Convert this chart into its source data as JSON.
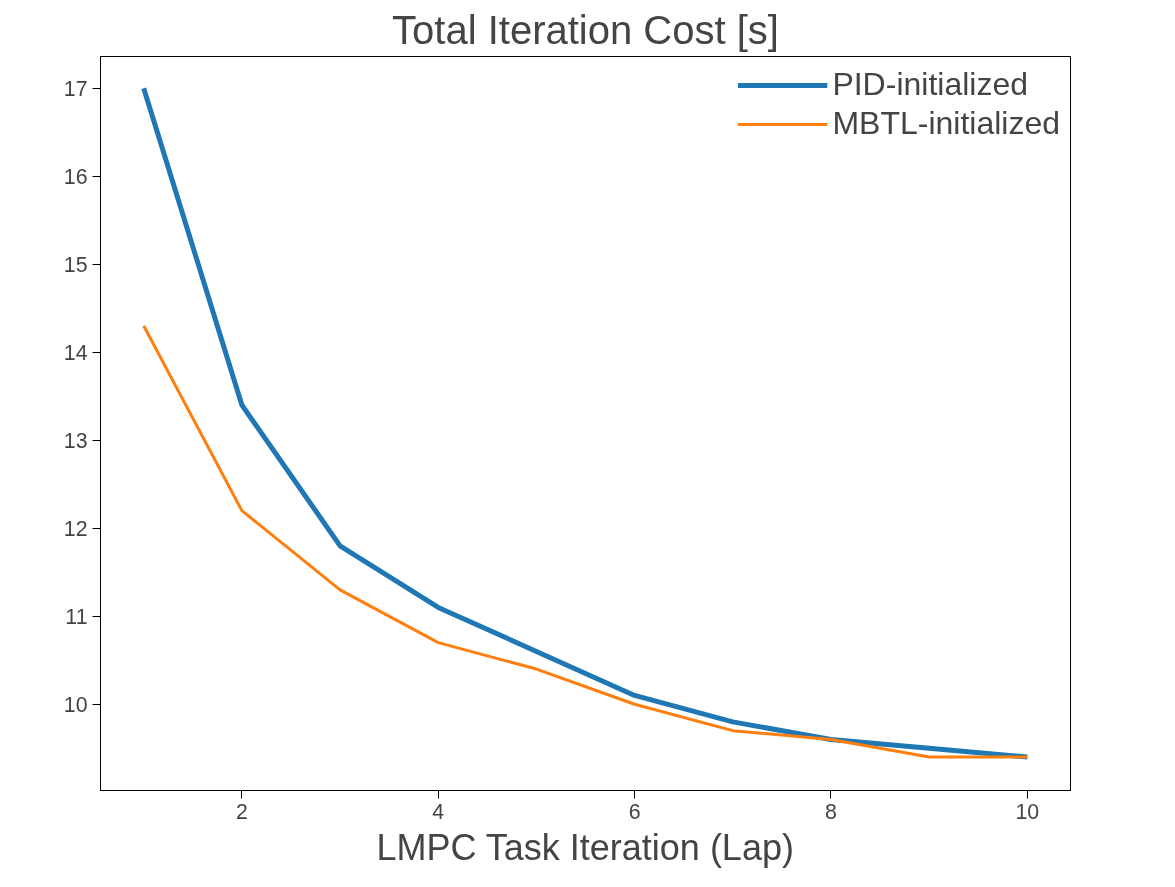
{
  "chart_data": {
    "type": "line",
    "title": "Total Iteration Cost [s]",
    "xlabel": "LMPC Task Iteration (Lap)",
    "x": [
      1,
      2,
      3,
      4,
      5,
      6,
      7,
      8,
      9,
      10
    ],
    "series": [
      {
        "name": "PID-initialized",
        "color": "#1f77b4",
        "values": [
          17.0,
          13.4,
          11.8,
          11.1,
          10.6,
          10.1,
          9.8,
          9.6,
          9.5,
          9.4
        ]
      },
      {
        "name": "MBTL-initialized",
        "color": "#ff7f0e",
        "values": [
          14.3,
          12.2,
          11.3,
          10.7,
          10.4,
          10.0,
          9.7,
          9.6,
          9.4,
          9.4
        ]
      }
    ],
    "xlim": [
      0.56,
      10.44
    ],
    "ylim": [
      9.02,
      17.36
    ],
    "xticks": [
      2,
      4,
      6,
      8,
      10
    ],
    "yticks": [
      10,
      11,
      12,
      13,
      14,
      15,
      16,
      17
    ],
    "grid": false,
    "legend": "top right",
    "marker": "none",
    "line_style": "solid"
  }
}
